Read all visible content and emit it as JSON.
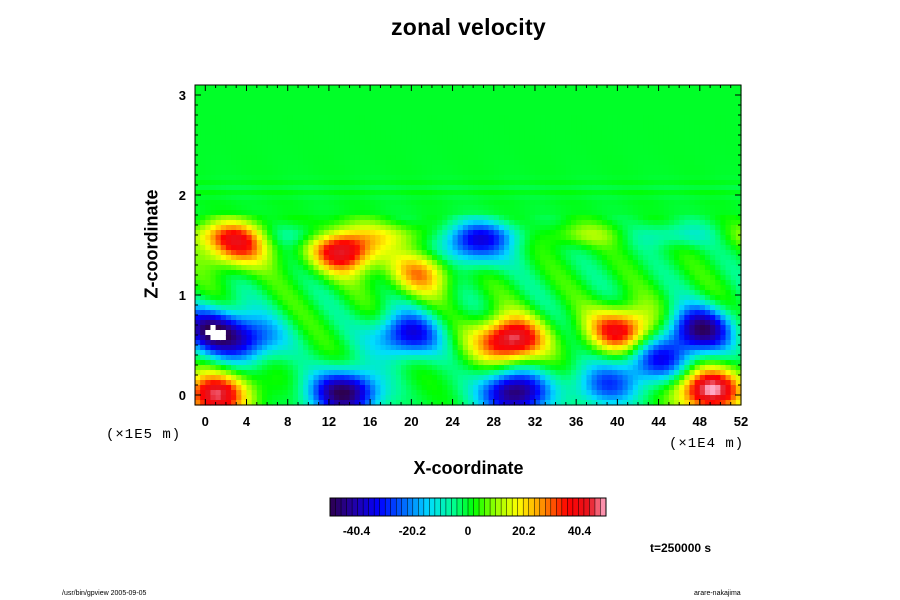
{
  "title": "zonal velocity",
  "footer": {
    "left": "/usr/bin/gpview 2005-09-05",
    "right": "arare-nakajima"
  },
  "time_label": "t=250000 s",
  "chart_data": {
    "type": "heatmap",
    "title": "zonal velocity",
    "xlabel": "X-coordinate",
    "ylabel": "Z-coordinate",
    "x_scale_label": "(×1E4 m)",
    "y_scale_label": "(×1E5 m)",
    "xlim": [
      -1,
      52
    ],
    "ylim": [
      -0.1,
      3.1
    ],
    "x_ticks": [
      0,
      4,
      8,
      12,
      16,
      20,
      24,
      28,
      32,
      36,
      40,
      44,
      48,
      52
    ],
    "y_ticks": [
      0,
      1,
      2,
      3
    ],
    "colorbar": {
      "ticks": [
        -40.4,
        -20.2,
        0,
        20.2,
        40.4
      ],
      "tick_labels": [
        "-40.4",
        "-20.2",
        "0",
        "20.2",
        "40.4"
      ],
      "range": [
        -50,
        50
      ],
      "levels": 50
    },
    "features": [
      {
        "kind": "negative",
        "x": 13.5,
        "z": 0.02,
        "value": -50
      },
      {
        "kind": "negative",
        "x": 30,
        "z": 0.02,
        "value": -48
      },
      {
        "kind": "negative",
        "x": 0.5,
        "z": 0.65,
        "value": -40
      },
      {
        "kind": "negative",
        "x": 4,
        "z": 0.55,
        "value": -30
      },
      {
        "kind": "negative",
        "x": 19.5,
        "z": 0.6,
        "value": -35
      },
      {
        "kind": "negative",
        "x": 26,
        "z": 1.5,
        "value": -30
      },
      {
        "kind": "negative",
        "x": 48,
        "z": 0.65,
        "value": -45
      },
      {
        "kind": "negative",
        "x": 44,
        "z": 0.35,
        "value": -30
      },
      {
        "kind": "negative",
        "x": 39,
        "z": 0.1,
        "value": -25
      },
      {
        "kind": "positive",
        "x": 29.5,
        "z": 0.55,
        "value": 50
      },
      {
        "kind": "positive",
        "x": 40.5,
        "z": 0.65,
        "value": 40
      },
      {
        "kind": "positive",
        "x": 49,
        "z": 0.05,
        "value": 50
      },
      {
        "kind": "positive",
        "x": 1,
        "z": 0.0,
        "value": 45
      },
      {
        "kind": "positive",
        "x": 13.5,
        "z": 1.45,
        "value": 45
      },
      {
        "kind": "positive",
        "x": 3,
        "z": 1.5,
        "value": 35
      },
      {
        "kind": "positive",
        "x": 21,
        "z": 1.22,
        "value": 25
      }
    ]
  }
}
